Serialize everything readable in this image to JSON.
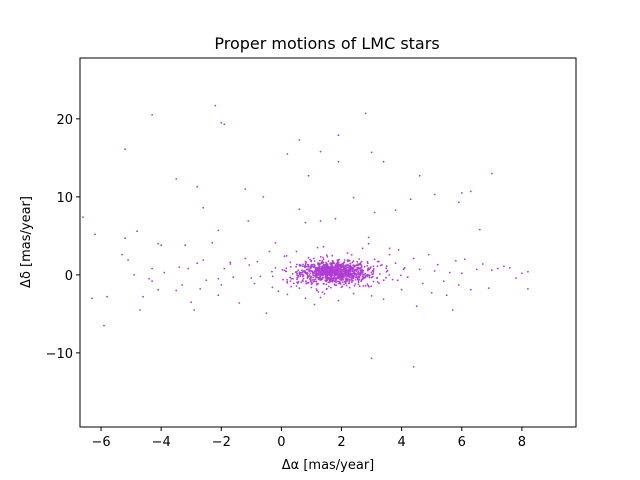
{
  "chart_data": {
    "type": "scatter",
    "title": "Proper motions of LMC stars",
    "xlabel": "Δα [mas/year]",
    "ylabel": "Δδ [mas/year]",
    "xlim": [
      -6.7,
      9.8
    ],
    "ylim": [
      -19.5,
      27.8
    ],
    "xticks": [
      -6,
      -4,
      -2,
      0,
      2,
      4,
      6,
      8
    ],
    "yticks": [
      -10,
      0,
      10,
      20
    ],
    "xtick_labels": [
      "−6",
      "−4",
      "−2",
      "0",
      "2",
      "4",
      "6",
      "8"
    ],
    "ytick_labels": [
      "−10",
      "0",
      "10",
      "20"
    ],
    "grid": false,
    "marker_color": "#b03cd6",
    "series": [
      {
        "x": [
          -6.6,
          -6.3,
          -6.2,
          -5.8,
          -5.3,
          -5.2,
          -5.1,
          -4.9,
          -4.8,
          -4.6,
          -4.4,
          -4.3,
          -4.3,
          -4.1,
          -4.0,
          -3.9,
          -3.5,
          -3.4,
          -3.3,
          -3.1,
          -2.9,
          -2.8,
          -2.7,
          -2.6,
          -2.5,
          -2.3,
          -2.1,
          -2.1,
          -2.0,
          -1.9,
          -1.7,
          -1.6,
          -1.4,
          -1.2,
          -1.1,
          -1.0,
          -0.9,
          -0.8,
          -0.7,
          -0.5,
          -0.4,
          -0.3,
          -0.2,
          -0.1,
          0.1,
          0.2,
          0.3,
          0.3,
          0.5,
          0.6,
          0.8,
          0.9,
          1.0,
          1.1,
          1.2,
          1.3,
          1.5,
          1.7,
          1.9,
          2.0,
          2.2,
          2.4,
          2.5,
          2.7,
          2.8,
          2.9,
          3.0,
          3.1,
          3.2,
          3.3,
          3.4,
          3.5,
          3.6,
          3.7,
          3.8,
          3.9,
          4.0,
          4.1,
          4.2,
          4.4,
          4.5,
          4.6,
          4.7,
          4.9,
          5.0,
          5.1,
          5.2,
          5.4,
          5.5,
          5.6,
          5.8,
          5.9,
          6.0,
          6.1,
          6.3,
          6.5,
          6.7,
          6.9,
          7.0,
          7.2,
          7.4,
          7.6,
          7.8,
          8.0,
          8.2,
          8.2,
          -4.3,
          -2.2,
          -2.0,
          -1.9,
          0.2,
          0.6,
          1.3,
          1.9,
          2.8,
          3.0,
          3.4,
          0.9,
          1.9,
          4.6,
          6.0,
          6.3,
          7.0,
          -5.2,
          -3.5,
          -2.8,
          -2.6,
          -1.2,
          -0.6,
          0.6,
          0.8,
          1.3,
          1.8,
          2.4,
          3.1,
          3.8,
          4.3,
          5.1,
          5.9,
          6.6,
          -4.1,
          -3.2,
          -2.1,
          -0.2,
          1.4,
          2.9,
          3.6,
          -5.9,
          -4.7,
          -3.0,
          3.0,
          4.4,
          5.7
        ],
        "y": [
          7.4,
          -3.0,
          5.2,
          -2.8,
          2.6,
          4.7,
          1.9,
          0.0,
          5.6,
          -2.8,
          -0.5,
          0.8,
          -0.8,
          -1.9,
          3.8,
          0.3,
          -2.0,
          1.0,
          -1.3,
          0.8,
          -4.5,
          1.5,
          -1.8,
          1.9,
          -0.7,
          4.1,
          -2.6,
          -0.5,
          -1.3,
          0.8,
          1.6,
          -0.3,
          -3.6,
          2.1,
          6.9,
          -0.4,
          -1.1,
          1.7,
          -0.2,
          -4.9,
          3.0,
          -1.6,
          0.9,
          -2.1,
          2.4,
          -2.5,
          1.6,
          -0.8,
          3.0,
          -1.7,
          -3.0,
          2.2,
          -1.2,
          -3.8,
          3.5,
          -2.9,
          -0.4,
          1.8,
          -3.3,
          -1.6,
          2.8,
          -2.4,
          0.6,
          3.4,
          -1.4,
          4.0,
          -2.7,
          2.0,
          -0.9,
          1.2,
          -3.1,
          0.4,
          2.6,
          -0.6,
          1.5,
          3.2,
          -1.9,
          0.9,
          -0.3,
          2.1,
          -4.0,
          0.7,
          -1.1,
          2.6,
          -2.3,
          0.5,
          1.3,
          -0.8,
          -2.6,
          0.3,
          1.8,
          -1.3,
          0.2,
          2.0,
          -1.9,
          0.7,
          1.4,
          -1.7,
          0.6,
          0.8,
          1.1,
          0.9,
          -0.4,
          0.2,
          0.4,
          -1.8,
          20.5,
          21.7,
          19.5,
          19.3,
          15.5,
          17.3,
          15.8,
          17.9,
          20.7,
          15.7,
          14.5,
          12.7,
          14.5,
          12.7,
          10.5,
          10.7,
          13.0,
          16.1,
          12.3,
          11.3,
          8.6,
          11.0,
          10.0,
          8.4,
          6.7,
          6.9,
          7.2,
          9.9,
          8.0,
          8.3,
          9.7,
          10.3,
          9.3,
          5.8,
          4.0,
          3.8,
          5.7,
          4.1,
          3.6,
          4.8,
          3.4,
          -6.5,
          -4.5,
          -3.5,
          -10.7,
          -11.8,
          -4.5
        ],
        "cluster": {
          "center": [
            1.75,
            0.3
          ],
          "spread": [
            0.55,
            0.85
          ],
          "count": 1100
        }
      }
    ]
  }
}
